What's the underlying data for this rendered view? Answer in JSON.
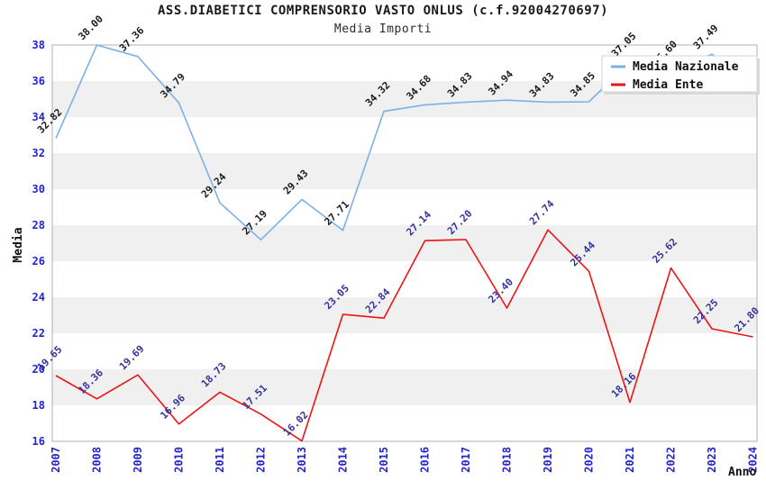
{
  "header": {
    "title": "ASS.DIABETICI COMPRENSORIO VASTO ONLUS (c.f.92004270697)",
    "subtitle": "Media Importi"
  },
  "chart_data": {
    "type": "line",
    "x": [
      2007,
      2008,
      2009,
      2010,
      2011,
      2012,
      2013,
      2014,
      2015,
      2016,
      2017,
      2018,
      2019,
      2020,
      2021,
      2022,
      2023,
      2024
    ],
    "xlabel": "Anno",
    "ylabel": "Media",
    "ylim": [
      16,
      38
    ],
    "ytick_step": 2,
    "grid": "alternating-bands",
    "gray_bands": [
      [
        18,
        20
      ],
      [
        22,
        24
      ],
      [
        26,
        28
      ],
      [
        30,
        32
      ],
      [
        34,
        36
      ]
    ],
    "series": [
      {
        "name": "Media Nazionale",
        "color": "#7db1e6",
        "label_color": "#1a1a1a",
        "values": [
          32.82,
          38.0,
          37.36,
          34.79,
          29.24,
          27.19,
          29.43,
          27.71,
          34.32,
          34.68,
          34.83,
          34.94,
          34.83,
          34.85,
          37.05,
          36.6,
          37.49,
          36.0
        ],
        "labels": [
          "32.82",
          "38.00",
          "37.36",
          "34.79",
          "29.24",
          "27.19",
          "29.43",
          "27.71",
          "34.32",
          "34.68",
          "34.83",
          "34.94",
          "34.83",
          "34.85",
          "37.05",
          "36.60",
          "37.49",
          ""
        ]
      },
      {
        "name": "Media Ente",
        "color": "#ee1414",
        "label_color": "#333399",
        "values": [
          19.65,
          18.36,
          19.69,
          16.96,
          18.73,
          17.51,
          16.02,
          23.05,
          22.84,
          27.14,
          27.2,
          23.4,
          27.74,
          25.44,
          18.16,
          25.62,
          22.25,
          21.8
        ],
        "labels": [
          "19.65",
          "18.36",
          "19.69",
          "16.96",
          "18.73",
          "17.51",
          "16.02",
          "23.05",
          "22.84",
          "27.14",
          "27.20",
          "23.40",
          "27.74",
          "25.44",
          "18.16",
          "25.62",
          "22.25",
          "21.80"
        ]
      }
    ],
    "legend": {
      "position": "top-right",
      "items": [
        {
          "label": "Media Nazionale",
          "color": "#7db1e6"
        },
        {
          "label": "Media Ente",
          "color": "#ee1414"
        }
      ]
    },
    "colors": {
      "tick_label": "#2424cc",
      "band": "#f0f0f0",
      "plot_border": "#b0b0b0",
      "axis_title": "#111111",
      "background": "#ffffff"
    }
  }
}
